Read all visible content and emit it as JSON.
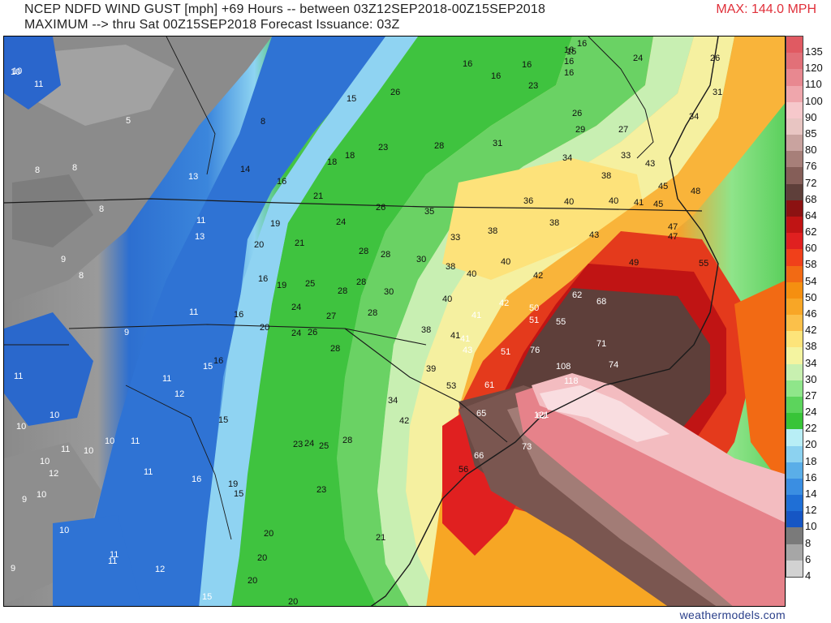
{
  "header": {
    "line1": "NCEP NDFD WIND GUST [mph] +69 Hours -- between 03Z12SEP2018-00Z15SEP2018",
    "line2": "MAXIMUM --> thru Sat 00Z15SEP2018   Forecast Issuance: 03Z",
    "max_label": "MAX: 144.0 MPH"
  },
  "credit": "weathermodels.com",
  "legend": [
    {
      "label": "135",
      "color": "#e05a62"
    },
    {
      "label": "120",
      "color": "#e27078"
    },
    {
      "label": "110",
      "color": "#e88890"
    },
    {
      "label": "100",
      "color": "#efa6ac"
    },
    {
      "label": "90",
      "color": "#f6c8cb"
    },
    {
      "label": "85",
      "color": "#e8c5c2"
    },
    {
      "label": "80",
      "color": "#c9a39f"
    },
    {
      "label": "76",
      "color": "#a77f79"
    },
    {
      "label": "72",
      "color": "#855e58"
    },
    {
      "label": "68",
      "color": "#5e3f3a"
    },
    {
      "label": "64",
      "color": "#8c1212"
    },
    {
      "label": "62",
      "color": "#c01414"
    },
    {
      "label": "60",
      "color": "#e02020"
    },
    {
      "label": "58",
      "color": "#f0401a"
    },
    {
      "label": "54",
      "color": "#f26a14"
    },
    {
      "label": "50",
      "color": "#f58f10"
    },
    {
      "label": "46",
      "color": "#f8a626"
    },
    {
      "label": "42",
      "color": "#fbc04a"
    },
    {
      "label": "38",
      "color": "#fde47a"
    },
    {
      "label": "34",
      "color": "#f4f4a0"
    },
    {
      "label": "30",
      "color": "#c8f0b0"
    },
    {
      "label": "27",
      "color": "#8fe68a"
    },
    {
      "label": "24",
      "color": "#5cd45c"
    },
    {
      "label": "22",
      "color": "#38c438"
    },
    {
      "label": "20",
      "color": "#b8eef6"
    },
    {
      "label": "18",
      "color": "#8cd2f0"
    },
    {
      "label": "16",
      "color": "#5aaee8"
    },
    {
      "label": "14",
      "color": "#3a8ee2"
    },
    {
      "label": "12",
      "color": "#1f6fd6"
    },
    {
      "label": "10",
      "color": "#1656c4"
    },
    {
      "label": "8",
      "color": "#7a7a7a"
    },
    {
      "label": "6",
      "color": "#a6a6a6"
    },
    {
      "label": "4",
      "color": "#d2d2d2"
    }
  ],
  "map_values": [
    "10",
    "11",
    "16",
    "15",
    "16",
    "16",
    "24",
    "26",
    "16",
    "16",
    "16",
    "16",
    "31",
    "10",
    "15",
    "8",
    "26",
    "23",
    "34",
    "5",
    "8",
    "8",
    "13",
    "14",
    "16",
    "18",
    "18",
    "23",
    "28",
    "31",
    "26",
    "29",
    "27",
    "33",
    "43",
    "34",
    "38",
    "45",
    "48",
    "8",
    "13",
    "21",
    "26",
    "35",
    "36",
    "40",
    "40",
    "41",
    "45",
    "47",
    "11",
    "19",
    "24",
    "20",
    "21",
    "33",
    "38",
    "38",
    "43",
    "47",
    "9",
    "8",
    "16",
    "19",
    "28",
    "28",
    "30",
    "38",
    "40",
    "40",
    "42",
    "49",
    "55",
    "25",
    "28",
    "28",
    "30",
    "40",
    "42",
    "50",
    "62",
    "68",
    "11",
    "16",
    "24",
    "27",
    "28",
    "41",
    "51",
    "55",
    "9",
    "20",
    "24",
    "26",
    "38",
    "41",
    "41",
    "43",
    "51",
    "76",
    "71",
    "16",
    "28",
    "39",
    "108",
    "11",
    "74",
    "15",
    "11",
    "12",
    "34",
    "53",
    "61",
    "118",
    "62",
    "10",
    "15",
    "42",
    "65",
    "121",
    "10",
    "11",
    "10",
    "10",
    "11",
    "23",
    "24",
    "25",
    "28",
    "66",
    "73",
    "10",
    "12",
    "56",
    "11",
    "16",
    "19",
    "15",
    "23",
    "9",
    "10",
    "21",
    "10",
    "11",
    "12",
    "20",
    "20",
    "11",
    "9",
    "15",
    "20",
    "20"
  ]
}
